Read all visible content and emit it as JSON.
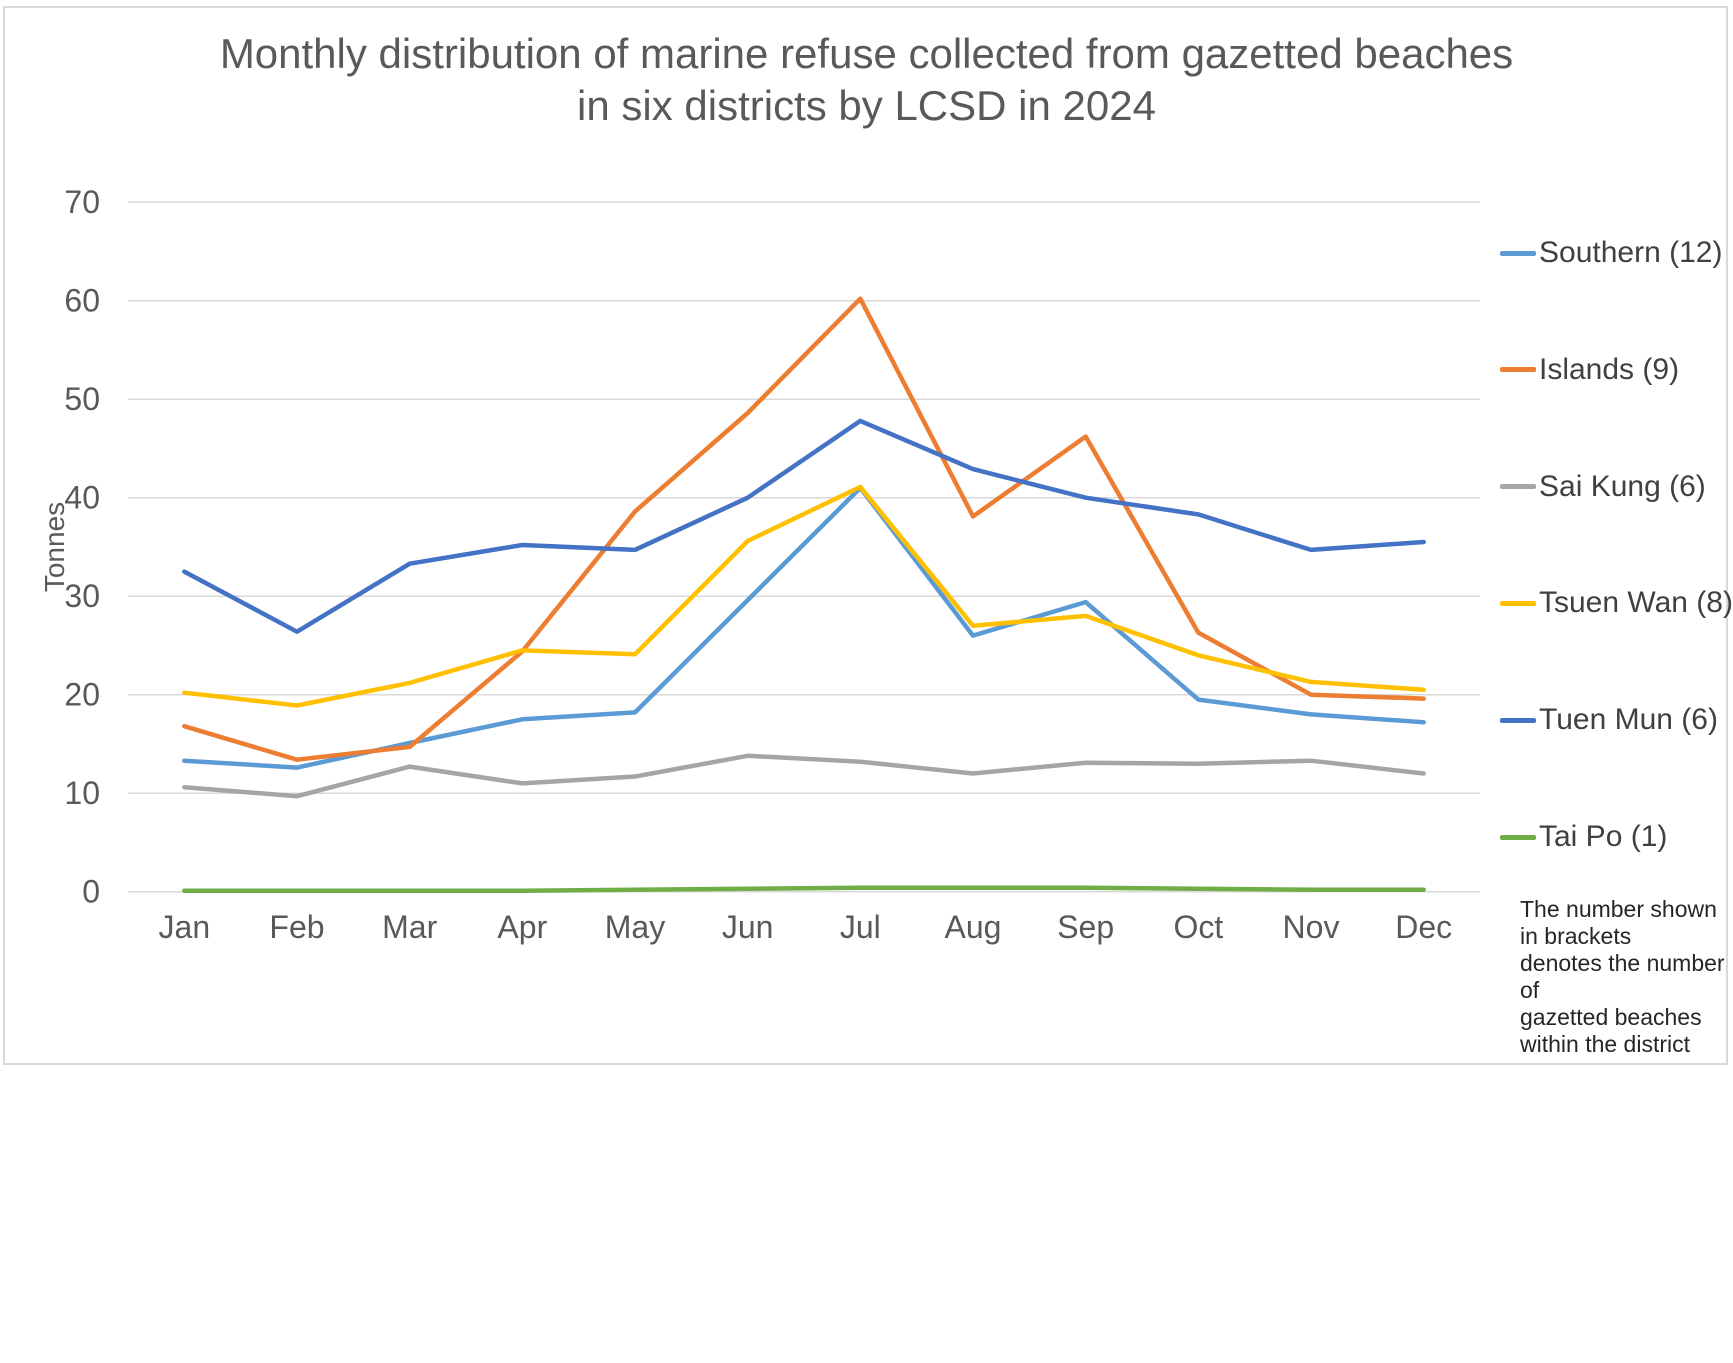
{
  "chart_data": {
    "type": "line",
    "title": "Monthly distribution of marine refuse collected from gazetted beaches in six districts by LCSD in 2024",
    "title_lines": [
      "Monthly distribution of marine refuse collected from gazetted beaches",
      "in six districts by LCSD in 2024"
    ],
    "xlabel": "",
    "ylabel": "Tonnes",
    "ylim": [
      0,
      70
    ],
    "ytick_step": 10,
    "ytick_labels": [
      "0",
      "10",
      "20",
      "30",
      "40",
      "50",
      "60",
      "70"
    ],
    "grid": "horizontal",
    "legend_position": "right",
    "categories": [
      "Jan",
      "Feb",
      "Mar",
      "Apr",
      "May",
      "Jun",
      "Jul",
      "Aug",
      "Sep",
      "Oct",
      "Nov",
      "Dec"
    ],
    "series": [
      {
        "name": "Southern",
        "legend_label": "Southern (12)",
        "color": "#5B9BD5",
        "values": [
          13.3,
          12.6,
          15.1,
          17.5,
          18.2,
          29.6,
          41.0,
          26.0,
          29.4,
          19.5,
          18.0,
          17.2
        ]
      },
      {
        "name": "Islands",
        "legend_label": "Islands (9)",
        "color": "#ED7D31",
        "values": [
          16.8,
          13.4,
          14.7,
          24.4,
          38.6,
          48.6,
          60.2,
          38.1,
          46.2,
          26.3,
          20.0,
          19.6
        ]
      },
      {
        "name": "Sai Kung",
        "legend_label": "Sai Kung (6)",
        "color": "#A5A5A5",
        "values": [
          10.6,
          9.7,
          12.7,
          11.0,
          11.7,
          13.8,
          13.2,
          12.0,
          13.1,
          13.0,
          13.3,
          12.0
        ]
      },
      {
        "name": "Tsuen Wan",
        "legend_label": "Tsuen Wan (8)",
        "color": "#FFC000",
        "values": [
          20.2,
          18.9,
          21.2,
          24.5,
          24.1,
          35.6,
          41.1,
          27.0,
          28.0,
          24.0,
          21.3,
          20.5
        ]
      },
      {
        "name": "Tuen Mun",
        "legend_label": "Tuen Mun (6)",
        "color": "#4472C4",
        "values": [
          32.5,
          26.4,
          33.3,
          35.2,
          34.7,
          40.0,
          47.8,
          42.9,
          40.0,
          38.3,
          34.7,
          35.5
        ]
      },
      {
        "name": "Tai Po",
        "legend_label": "Tai Po (1)",
        "color": "#70AD47",
        "values": [
          0.1,
          0.1,
          0.1,
          0.1,
          0.2,
          0.3,
          0.4,
          0.4,
          0.4,
          0.3,
          0.2,
          0.2
        ]
      }
    ],
    "note_lines": [
      "The number shown",
      "in brackets",
      "denotes the number of",
      "gazetted beaches",
      "within the district"
    ]
  },
  "colors": {
    "background": "#FFFFFF",
    "frame_border": "#D9D9D9",
    "gridline": "#D9D9D9",
    "title_text": "#595959",
    "axis_text": "#595959",
    "legend_text": "#404040",
    "note_text": "#262626"
  }
}
